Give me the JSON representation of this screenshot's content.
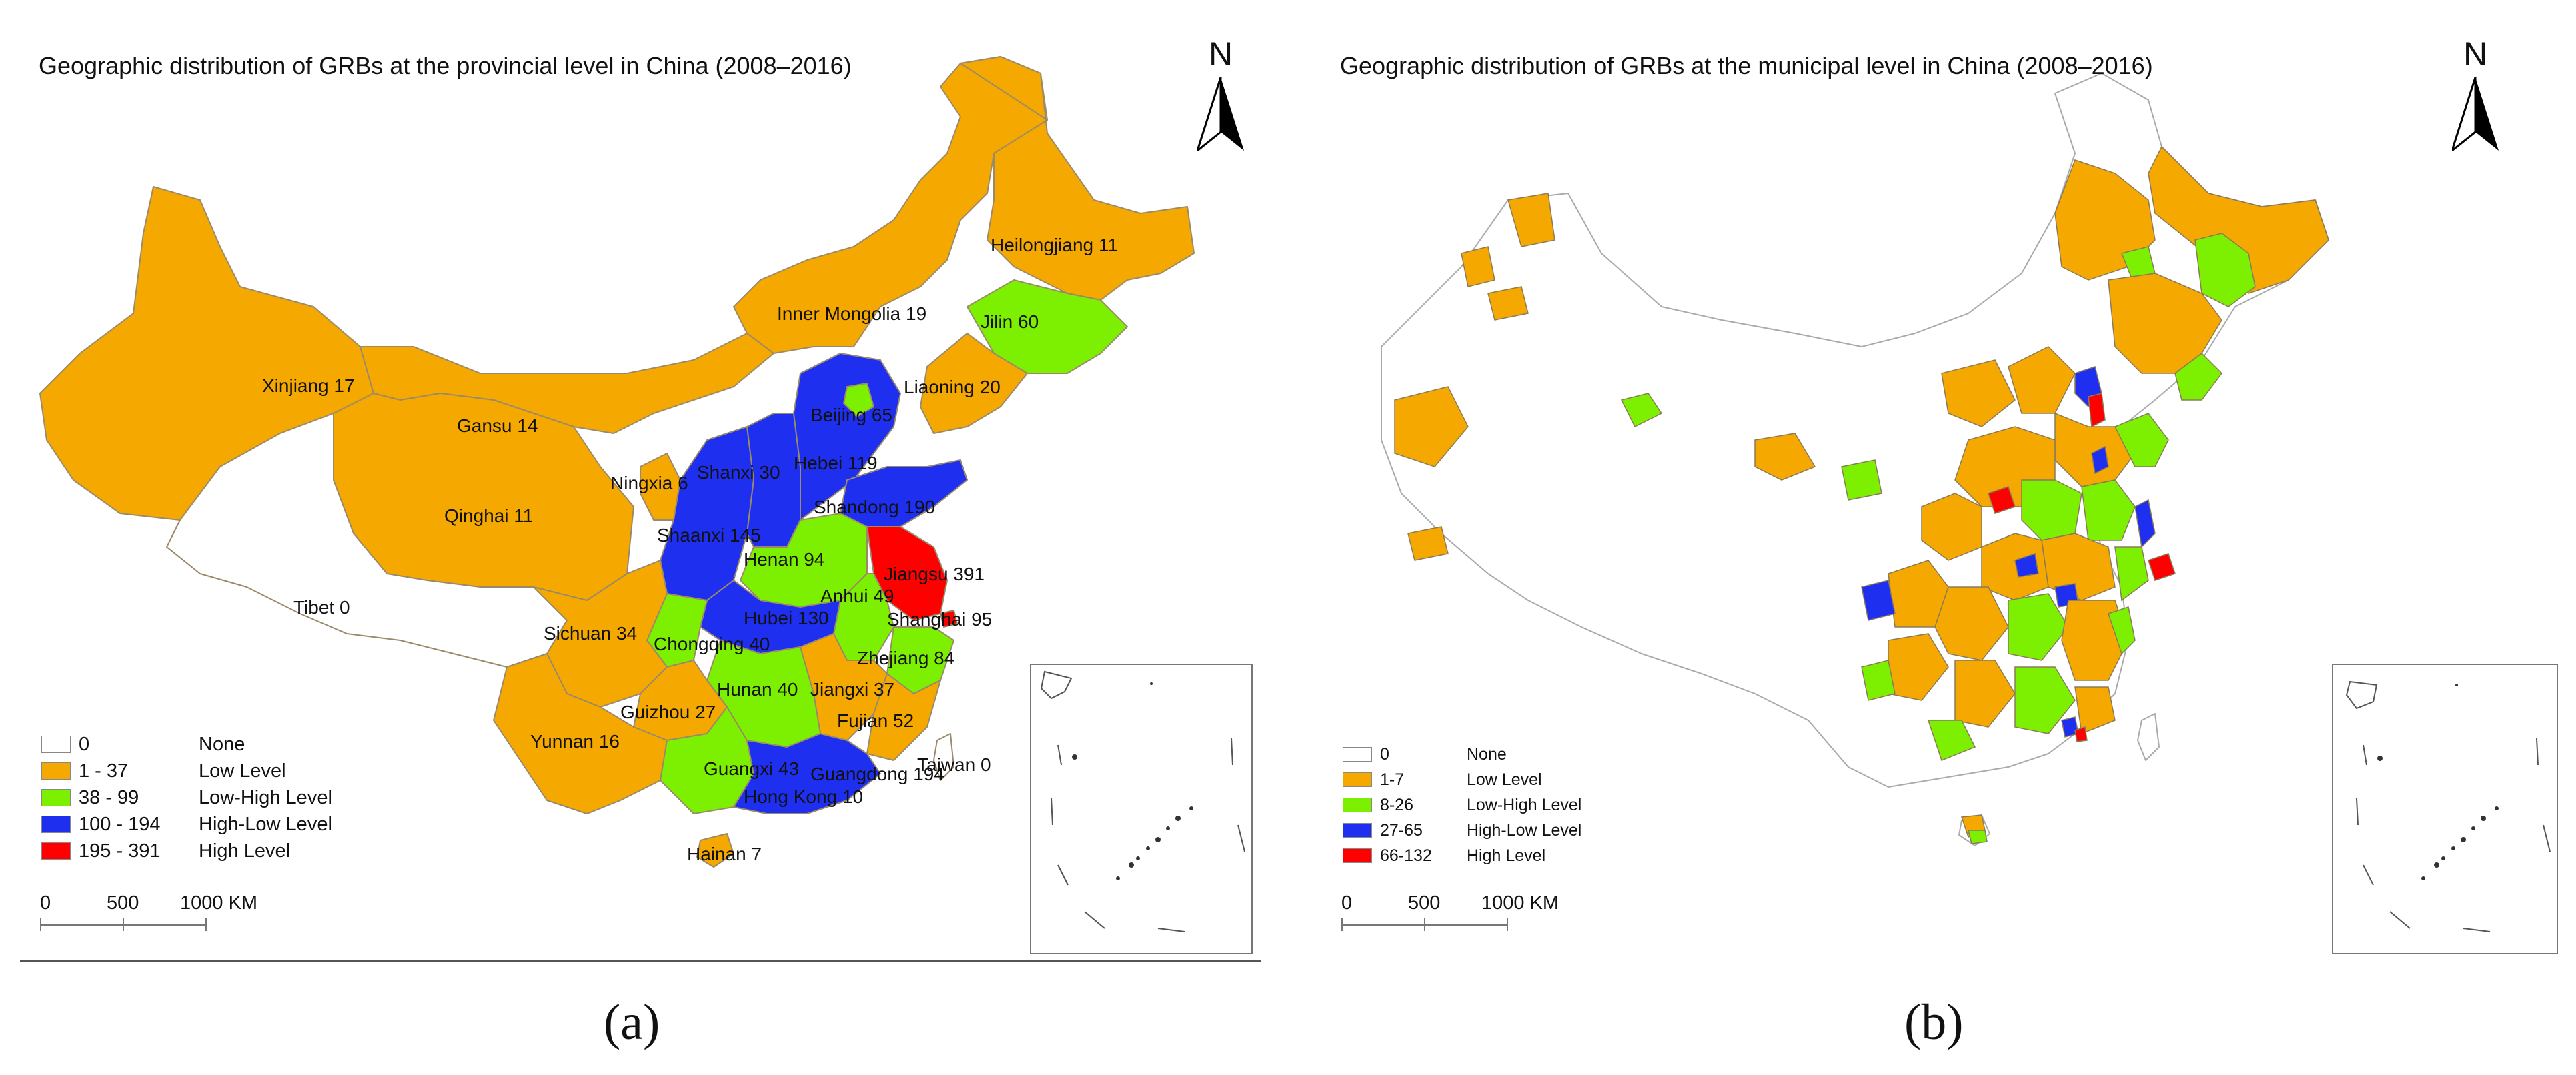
{
  "panel_a": {
    "title": "Geographic distribution of GRBs at the provincial level in China (2008–2016)",
    "caption": "(a)",
    "north_label": "N",
    "legend": [
      {
        "range": "0",
        "level": "None",
        "color": "#ffffff"
      },
      {
        "range": "1 - 37",
        "level": "Low Level",
        "color": "#f5a800"
      },
      {
        "range": "38 - 99",
        "level": "Low-High Level",
        "color": "#7cf000"
      },
      {
        "range": "100 - 194",
        "level": "High-Low Level",
        "color": "#1f2ff0"
      },
      {
        "range": "195 - 391",
        "level": "High Level",
        "color": "#ff0000"
      }
    ],
    "scale": {
      "labels": [
        "0",
        "500",
        "1000 KM"
      ]
    },
    "provinces": [
      {
        "name": "Heilongjiang 11",
        "value": 11
      },
      {
        "name": "Inner Mongolia 19",
        "value": 19
      },
      {
        "name": "Jilin 60",
        "value": 60
      },
      {
        "name": "Xinjiang 17",
        "value": 17
      },
      {
        "name": "Liaoning 20",
        "value": 20
      },
      {
        "name": "Gansu 14",
        "value": 14
      },
      {
        "name": "Beijing 65",
        "value": 65
      },
      {
        "name": "Hebei 119",
        "value": 119
      },
      {
        "name": "Ningxia 6",
        "value": 6
      },
      {
        "name": "Shanxi 30",
        "value": 30
      },
      {
        "name": "Shandong 190",
        "value": 190
      },
      {
        "name": "Qinghai 11",
        "value": 11
      },
      {
        "name": "Shaanxi 145",
        "value": 145
      },
      {
        "name": "Henan 94",
        "value": 94
      },
      {
        "name": "Jiangsu 391",
        "value": 391
      },
      {
        "name": "Anhui 49",
        "value": 49
      },
      {
        "name": "Tibet 0",
        "value": 0
      },
      {
        "name": "Hubei 130",
        "value": 130
      },
      {
        "name": "Shanghai 95",
        "value": 95
      },
      {
        "name": "Sichuan 34",
        "value": 34
      },
      {
        "name": "Chongqing 40",
        "value": 40
      },
      {
        "name": "Zhejiang 84",
        "value": 84
      },
      {
        "name": "Hunan 40",
        "value": 40
      },
      {
        "name": "Jiangxi 37",
        "value": 37
      },
      {
        "name": "Guizhou 27",
        "value": 27
      },
      {
        "name": "Fujian 52",
        "value": 52
      },
      {
        "name": "Yunnan 16",
        "value": 16
      },
      {
        "name": "Guangxi 43",
        "value": 43
      },
      {
        "name": "Guangdong 194",
        "value": 194
      },
      {
        "name": "Taiwan 0",
        "value": 0
      },
      {
        "name": "Hong Kong 10",
        "value": 10
      },
      {
        "name": "Hainan 7",
        "value": 7
      }
    ]
  },
  "panel_b": {
    "title": "Geographic distribution of GRBs at the municipal level in China (2008–2016)",
    "caption": "(b)",
    "north_label": "N",
    "legend": [
      {
        "range": "0",
        "level": "None",
        "color": "#ffffff"
      },
      {
        "range": "1-7",
        "level": "Low Level",
        "color": "#f5a800"
      },
      {
        "range": "8-26",
        "level": "Low-High Level",
        "color": "#7cf000"
      },
      {
        "range": "27-65",
        "level": "High-Low Level",
        "color": "#1f2ff0"
      },
      {
        "range": "66-132",
        "level": "High Level",
        "color": "#ff0000"
      }
    ],
    "scale": {
      "labels": [
        "0",
        "500",
        "1000 KM"
      ]
    }
  }
}
